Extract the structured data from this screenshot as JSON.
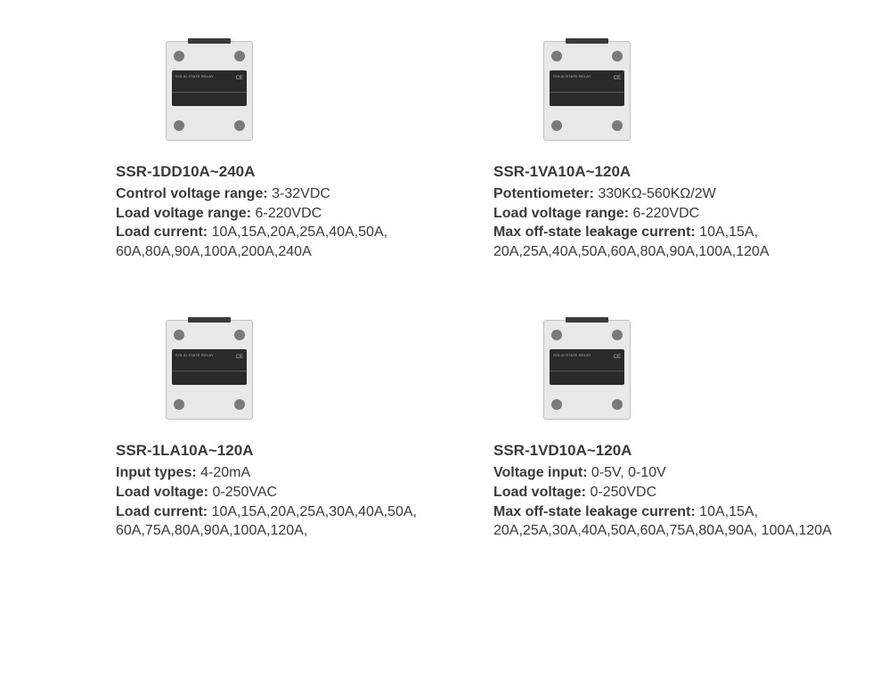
{
  "products": [
    {
      "title": "SSR-1DD10A~240A",
      "specs": [
        {
          "label": "Control voltage range:",
          "value": " 3-32VDC"
        },
        {
          "label": "Load voltage range:",
          "value": " 6-220VDC"
        },
        {
          "label": "Load current:",
          "value": " 10A,15A,20A,25A,40A,50A, 60A,80A,90A,100A,200A,240A"
        }
      ]
    },
    {
      "title": "SSR-1VA10A~120A",
      "specs": [
        {
          "label": "Potentiometer:",
          "value": " 330KΩ-560KΩ/2W"
        },
        {
          "label": "Load voltage range:",
          "value": " 6-220VDC"
        },
        {
          "label": "Max off-state leakage current:",
          "value": " 10A,15A, 20A,25A,40A,50A,60A,80A,90A,100A,120A"
        }
      ]
    },
    {
      "title": "SSR-1LA10A~120A",
      "specs": [
        {
          "label": "Input types:",
          "value": " 4-20mA"
        },
        {
          "label": "Load voltage:",
          "value": " 0-250VAC"
        },
        {
          "label": "Load current:",
          "value": " 10A,15A,20A,25A,30A,40A,50A, 60A,75A,80A,90A,100A,120A,"
        }
      ]
    },
    {
      "title": "SSR-1VD10A~120A",
      "specs": [
        {
          "label": "Voltage input:",
          "value": " 0-5V, 0-10V"
        },
        {
          "label": "Load voltage:",
          "value": " 0-250VDC"
        },
        {
          "label": "Max off-state leakage current:",
          "value": " 10A,15A, 20A,25A,30A,40A,50A,60A,75A,80A,90A, 100A,120A"
        }
      ]
    }
  ],
  "brand_tiny": "SOLID STATE RELAY",
  "ce_mark": "CE"
}
